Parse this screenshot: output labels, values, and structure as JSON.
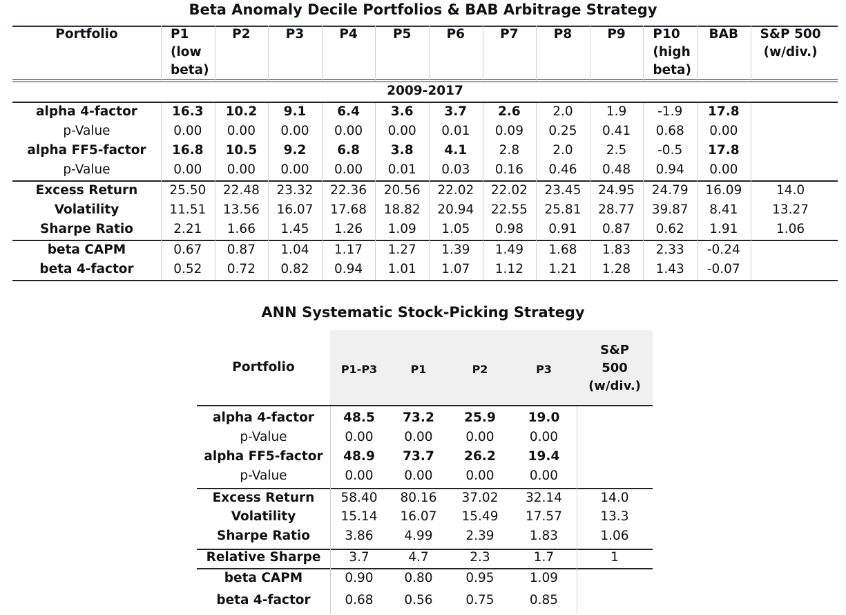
{
  "table1": {
    "title": "Beta Anomaly Decile Portfolios & BAB Arbitrage Strategy",
    "corner": "Portfolio",
    "columns": [
      {
        "lines": [
          "P1",
          "(low",
          "beta)"
        ],
        "align": "left"
      },
      {
        "lines": [
          "P2"
        ]
      },
      {
        "lines": [
          "P3"
        ]
      },
      {
        "lines": [
          "P4"
        ]
      },
      {
        "lines": [
          "P5"
        ]
      },
      {
        "lines": [
          "P6"
        ]
      },
      {
        "lines": [
          "P7"
        ]
      },
      {
        "lines": [
          "P8"
        ]
      },
      {
        "lines": [
          "P9"
        ]
      },
      {
        "lines": [
          "P10",
          "(high",
          "beta)"
        ],
        "align": "left"
      },
      {
        "lines": [
          "BAB"
        ]
      },
      {
        "lines": [
          "S&P 500",
          "(w/div.)"
        ]
      }
    ],
    "period": "2009-2017",
    "rows": [
      {
        "label": "alpha 4-factor",
        "label_bold": true,
        "values": [
          "16.3",
          "10.2",
          "9.1",
          "6.4",
          "3.6",
          "3.7",
          "2.6",
          "2.0",
          "1.9",
          "-1.9",
          "17.8",
          ""
        ],
        "bold": [
          true,
          true,
          true,
          true,
          true,
          true,
          true,
          false,
          false,
          false,
          true,
          false
        ]
      },
      {
        "label": "p-Value",
        "label_bold": false,
        "values": [
          "0.00",
          "0.00",
          "0.00",
          "0.00",
          "0.00",
          "0.01",
          "0.09",
          "0.25",
          "0.41",
          "0.68",
          "0.00",
          ""
        ]
      },
      {
        "label": "alpha FF5-factor",
        "label_bold": true,
        "values": [
          "16.8",
          "10.5",
          "9.2",
          "6.8",
          "3.8",
          "4.1",
          "2.8",
          "2.0",
          "2.5",
          "-0.5",
          "17.8",
          ""
        ],
        "bold": [
          true,
          true,
          true,
          true,
          true,
          true,
          false,
          false,
          false,
          false,
          true,
          false
        ]
      },
      {
        "label": "p-Value",
        "label_bold": false,
        "values": [
          "0.00",
          "0.00",
          "0.00",
          "0.00",
          "0.01",
          "0.03",
          "0.16",
          "0.46",
          "0.48",
          "0.94",
          "0.00",
          ""
        ]
      },
      {
        "label": "Excess Return",
        "label_bold": true,
        "values": [
          "25.50",
          "22.48",
          "23.32",
          "22.36",
          "20.56",
          "22.02",
          "22.02",
          "23.45",
          "24.95",
          "24.79",
          "16.09",
          "14.0"
        ]
      },
      {
        "label": "Volatility",
        "label_bold": true,
        "values": [
          "11.51",
          "13.56",
          "16.07",
          "17.68",
          "18.82",
          "20.94",
          "22.55",
          "25.81",
          "28.77",
          "39.87",
          "8.41",
          "13.27"
        ]
      },
      {
        "label": "Sharpe Ratio",
        "label_bold": true,
        "values": [
          "2.21",
          "1.66",
          "1.45",
          "1.26",
          "1.09",
          "1.05",
          "0.98",
          "0.91",
          "0.87",
          "0.62",
          "1.91",
          "1.06"
        ]
      },
      {
        "label": "beta CAPM",
        "label_bold": true,
        "values": [
          "0.67",
          "0.87",
          "1.04",
          "1.17",
          "1.27",
          "1.39",
          "1.49",
          "1.68",
          "1.83",
          "2.33",
          "-0.24",
          ""
        ]
      },
      {
        "label": "beta 4-factor",
        "label_bold": true,
        "values": [
          "0.52",
          "0.72",
          "0.82",
          "0.94",
          "1.01",
          "1.07",
          "1.12",
          "1.21",
          "1.28",
          "1.43",
          "-0.07",
          ""
        ]
      }
    ]
  },
  "table2": {
    "title": "ANN Systematic Stock-Picking Strategy",
    "corner": "Portfolio",
    "columns": [
      {
        "lines": [
          "P1-P3"
        ]
      },
      {
        "lines": [
          "P1"
        ]
      },
      {
        "lines": [
          "P2"
        ]
      },
      {
        "lines": [
          "P3"
        ]
      },
      {
        "lines": [
          "S&P",
          "500",
          "(w/div.)"
        ]
      }
    ],
    "rows": [
      {
        "label": "alpha 4-factor",
        "label_bold": true,
        "values": [
          "48.5",
          "73.2",
          "25.9",
          "19.0",
          ""
        ],
        "bold": [
          true,
          true,
          true,
          true,
          false
        ]
      },
      {
        "label": "p-Value",
        "label_bold": false,
        "values": [
          "0.00",
          "0.00",
          "0.00",
          "0.00",
          ""
        ]
      },
      {
        "label": "alpha FF5-factor",
        "label_bold": true,
        "values": [
          "48.9",
          "73.7",
          "26.2",
          "19.4",
          ""
        ],
        "bold": [
          true,
          true,
          true,
          true,
          false
        ]
      },
      {
        "label": "p-Value",
        "label_bold": false,
        "values": [
          "0.00",
          "0.00",
          "0.00",
          "0.00",
          ""
        ]
      },
      {
        "label": "Excess Return",
        "label_bold": true,
        "values": [
          "58.40",
          "80.16",
          "37.02",
          "32.14",
          "14.0"
        ]
      },
      {
        "label": "Volatility",
        "label_bold": true,
        "values": [
          "15.14",
          "16.07",
          "15.49",
          "17.57",
          "13.3"
        ]
      },
      {
        "label": "Sharpe Ratio",
        "label_bold": true,
        "values": [
          "3.86",
          "4.99",
          "2.39",
          "1.83",
          "1.06"
        ]
      },
      {
        "label": "Relative Sharpe",
        "label_bold": true,
        "values": [
          "3.7",
          "4.7",
          "2.3",
          "1.7",
          "1"
        ]
      },
      {
        "label": "beta CAPM",
        "label_bold": true,
        "values": [
          "0.90",
          "0.80",
          "0.95",
          "1.09",
          ""
        ]
      },
      {
        "label": "beta 4-factor",
        "label_bold": true,
        "values": [
          "0.68",
          "0.56",
          "0.75",
          "0.85",
          ""
        ]
      }
    ]
  }
}
